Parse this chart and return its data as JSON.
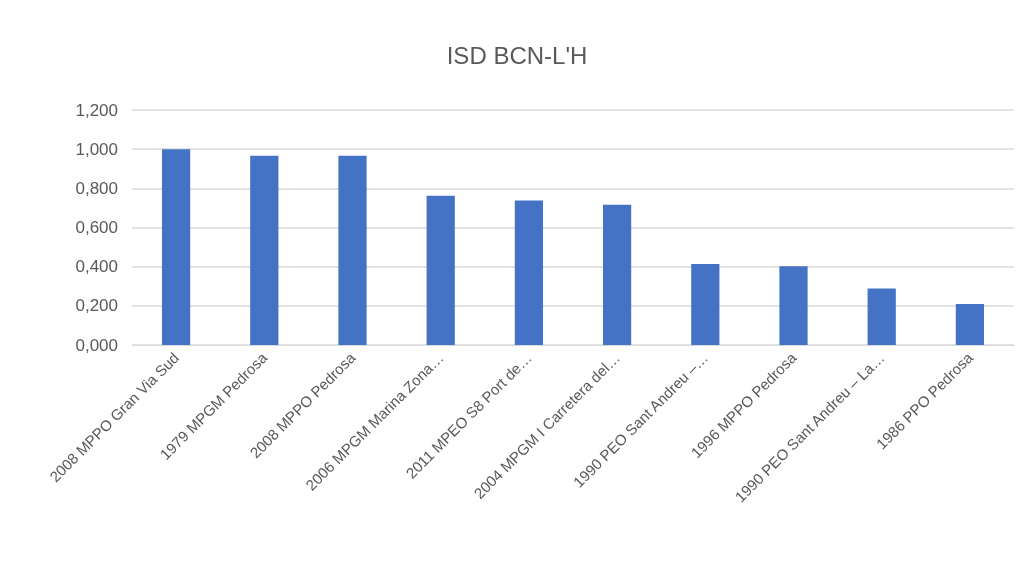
{
  "chart_data": {
    "type": "bar",
    "title": "ISD BCN-L'H",
    "categories": [
      "2008 MPPO Gran Via Sud",
      "1979 MPGM Pedrosa",
      "2008 MPPO Pedrosa",
      "2006 MPGM Marina Zona…",
      "2011 MPEO S8 Port de…",
      "2004 MPGM I Carretera del…",
      "1990 PEO Sant Andreu –…",
      "1996 MPPO Pedrosa",
      "1990 PEO Sant Andreu – La…",
      "1986 PPO Pedrosa"
    ],
    "values": [
      1.0,
      0.966,
      0.966,
      0.762,
      0.738,
      0.716,
      0.414,
      0.402,
      0.289,
      0.209
    ],
    "color": "#4472c4",
    "ylim": [
      0,
      1.2
    ],
    "yticks": [
      {
        "value": 0,
        "label": "0,000"
      },
      {
        "value": 0.2,
        "label": "0,200"
      },
      {
        "value": 0.4,
        "label": "0,400"
      },
      {
        "value": 0.6,
        "label": "0,600"
      },
      {
        "value": 0.8,
        "label": "0,800"
      },
      {
        "value": 1.0,
        "label": "1,000"
      },
      {
        "value": 1.2,
        "label": "1,200"
      }
    ],
    "grid": "y"
  }
}
